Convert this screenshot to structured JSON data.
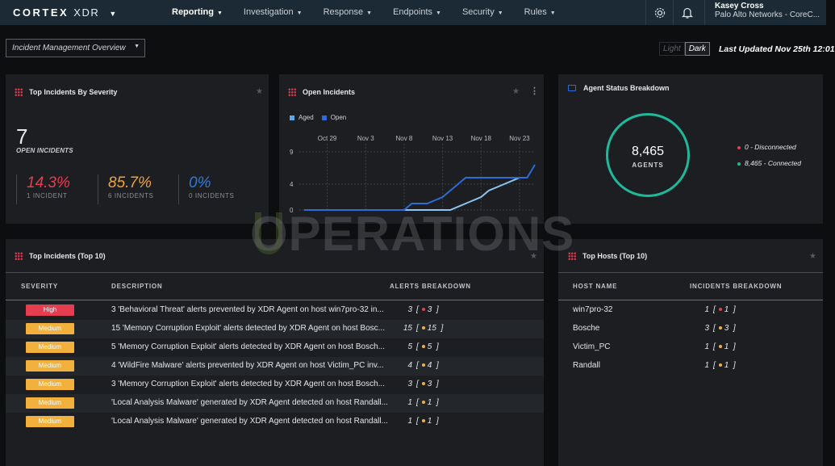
{
  "app": {
    "brand": "CORTEX",
    "product": "XDR"
  },
  "nav": [
    {
      "label": "Reporting",
      "active": true
    },
    {
      "label": "Investigation"
    },
    {
      "label": "Response"
    },
    {
      "label": "Endpoints"
    },
    {
      "label": "Security"
    },
    {
      "label": "Rules"
    }
  ],
  "user": {
    "name": "Kasey Cross",
    "org": "Palo Alto Networks - CoreC..."
  },
  "dashboard": {
    "selected": "Incident Management Overview",
    "theme_light": "Light",
    "theme_dark": "Dark",
    "last_updated": "Last Updated Nov 25th 12:01"
  },
  "severity_panel": {
    "title": "Top Incidents By Severity",
    "total": "7",
    "total_label": "OPEN INCIDENTS",
    "stats": [
      {
        "pct": "14.3%",
        "count": "1 INCIDENT",
        "color": "#e53e51"
      },
      {
        "pct": "85.7%",
        "count": "6 INCIDENTS",
        "color": "#f2a33c"
      },
      {
        "pct": "0%",
        "count": "0 INCIDENTS",
        "color": "#2d7de0"
      }
    ]
  },
  "open_panel": {
    "title": "Open Incidents",
    "legend": [
      {
        "name": "Aged",
        "color": "#5aa9e6"
      },
      {
        "name": "Open",
        "color": "#2d6bd6"
      }
    ]
  },
  "chart_data": {
    "type": "line",
    "x_ticks": [
      "Oct 29",
      "Nov 3",
      "Nov 8",
      "Nov 13",
      "Nov 18",
      "Nov 23"
    ],
    "y_ticks": [
      0,
      4,
      9
    ],
    "ylim": [
      0,
      10
    ],
    "x_range": [
      "Oct 26",
      "Nov 25"
    ],
    "series": [
      {
        "name": "Aged",
        "color": "#8ec5f0",
        "points": [
          [
            "Oct 26",
            0
          ],
          [
            "Nov 6",
            0
          ],
          [
            "Nov 8",
            0
          ],
          [
            "Nov 9",
            0
          ],
          [
            "Nov 11",
            0
          ],
          [
            "Nov 13",
            0
          ],
          [
            "Nov 14",
            0
          ],
          [
            "Nov 16",
            1
          ],
          [
            "Nov 18",
            2
          ],
          [
            "Nov 19",
            3
          ],
          [
            "Nov 21",
            4
          ],
          [
            "Nov 23",
            5
          ],
          [
            "Nov 24",
            5
          ]
        ]
      },
      {
        "name": "Open",
        "color": "#2d6bd6",
        "points": [
          [
            "Oct 26",
            0
          ],
          [
            "Nov 6",
            0
          ],
          [
            "Nov 8",
            0
          ],
          [
            "Nov 9",
            1
          ],
          [
            "Nov 11",
            1
          ],
          [
            "Nov 13",
            2
          ],
          [
            "Nov 14",
            3
          ],
          [
            "Nov 16",
            5
          ],
          [
            "Nov 18",
            5
          ],
          [
            "Nov 21",
            5
          ],
          [
            "Nov 23",
            5
          ],
          [
            "Nov 24",
            5
          ],
          [
            "Nov 25",
            7
          ]
        ]
      }
    ]
  },
  "agent_panel": {
    "title": "Agent Status Breakdown",
    "total": "8,465",
    "total_label": "AGENTS",
    "legend": [
      {
        "label": "0 - Disconnected",
        "color": "#e53e51"
      },
      {
        "label": "8,465 - Connected",
        "color": "#1fb89b"
      }
    ]
  },
  "incidents_table": {
    "title": "Top Incidents (Top 10)",
    "columns": [
      "SEVERITY",
      "DESCRIPTION",
      "ALERTS BREAKDOWN"
    ],
    "rows": [
      {
        "severity": "High",
        "level": "high",
        "description": "3 'Behavioral Threat' alerts prevented by XDR Agent on host win7pro-32 in...",
        "total": "3",
        "count": "3",
        "dot": "#e53e51"
      },
      {
        "severity": "Medium",
        "level": "med",
        "description": "15 'Memory Corruption Exploit' alerts detected by XDR Agent on host Bosc...",
        "total": "15",
        "count": "15",
        "dot": "#f2b03c"
      },
      {
        "severity": "Medium",
        "level": "med",
        "description": "5 'Memory Corruption Exploit' alerts detected by XDR Agent on host Bosch...",
        "total": "5",
        "count": "5",
        "dot": "#f2b03c"
      },
      {
        "severity": "Medium",
        "level": "med",
        "description": "4 'WildFire Malware' alerts prevented by XDR Agent on host Victim_PC inv...",
        "total": "4",
        "count": "4",
        "dot": "#f2b03c"
      },
      {
        "severity": "Medium",
        "level": "med",
        "description": "3 'Memory Corruption Exploit' alerts detected by XDR Agent on host Bosch...",
        "total": "3",
        "count": "3",
        "dot": "#f2b03c"
      },
      {
        "severity": "Medium",
        "level": "med",
        "description": "'Local Analysis Malware' generated by XDR Agent detected on host Randall...",
        "total": "1",
        "count": "1",
        "dot": "#f2b03c"
      },
      {
        "severity": "Medium",
        "level": "med",
        "description": "'Local Analysis Malware' generated by XDR Agent detected on host Randall...",
        "total": "1",
        "count": "1",
        "dot": "#f2b03c"
      }
    ]
  },
  "hosts_table": {
    "title": "Top Hosts (Top 10)",
    "columns": [
      "HOST NAME",
      "INCIDENTS BREAKDOWN"
    ],
    "rows": [
      {
        "host": "win7pro-32",
        "total": "1",
        "count": "1",
        "dot": "#e53e51"
      },
      {
        "host": "Bosche",
        "total": "3",
        "count": "3",
        "dot": "#f2b03c"
      },
      {
        "host": "Victim_PC",
        "total": "1",
        "count": "1",
        "dot": "#f2b03c"
      },
      {
        "host": "Randall",
        "total": "1",
        "count": "1",
        "dot": "#f2b03c"
      }
    ]
  },
  "watermark": "OPERATIONS"
}
